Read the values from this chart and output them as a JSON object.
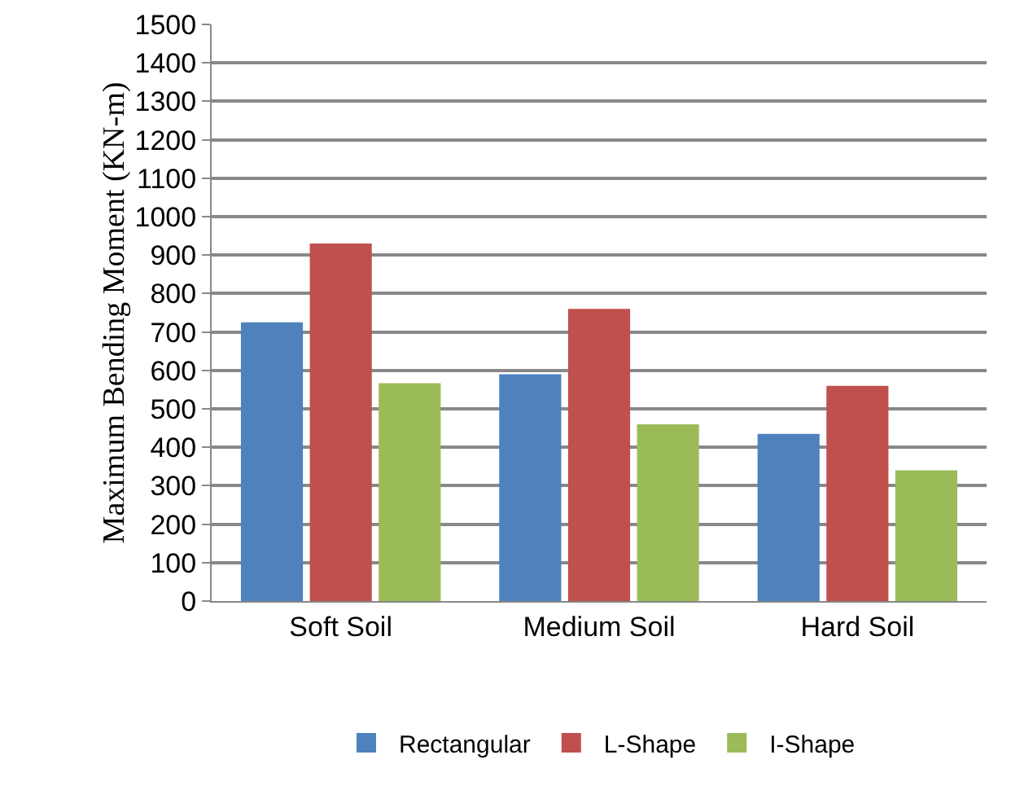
{
  "chart_data": {
    "type": "bar",
    "ylabel": "Maximum Bending Moment (KN-m)",
    "categories": [
      "Soft Soil",
      "Medium Soil",
      "Hard Soil"
    ],
    "series": [
      {
        "name": "Rectangular",
        "color": "#4f81bd",
        "values": [
          725,
          590,
          435
        ]
      },
      {
        "name": "L-Shape",
        "color": "#c0504d",
        "values": [
          930,
          760,
          560
        ]
      },
      {
        "name": "I-Shape",
        "color": "#9bbb59",
        "values": [
          567,
          460,
          340
        ]
      }
    ],
    "ylim": [
      0,
      1500
    ],
    "yticks": [
      0,
      100,
      200,
      300,
      400,
      500,
      600,
      700,
      800,
      900,
      1000,
      1100,
      1200,
      1300,
      1400,
      1500
    ],
    "grid": "y",
    "legend": "bottom"
  }
}
